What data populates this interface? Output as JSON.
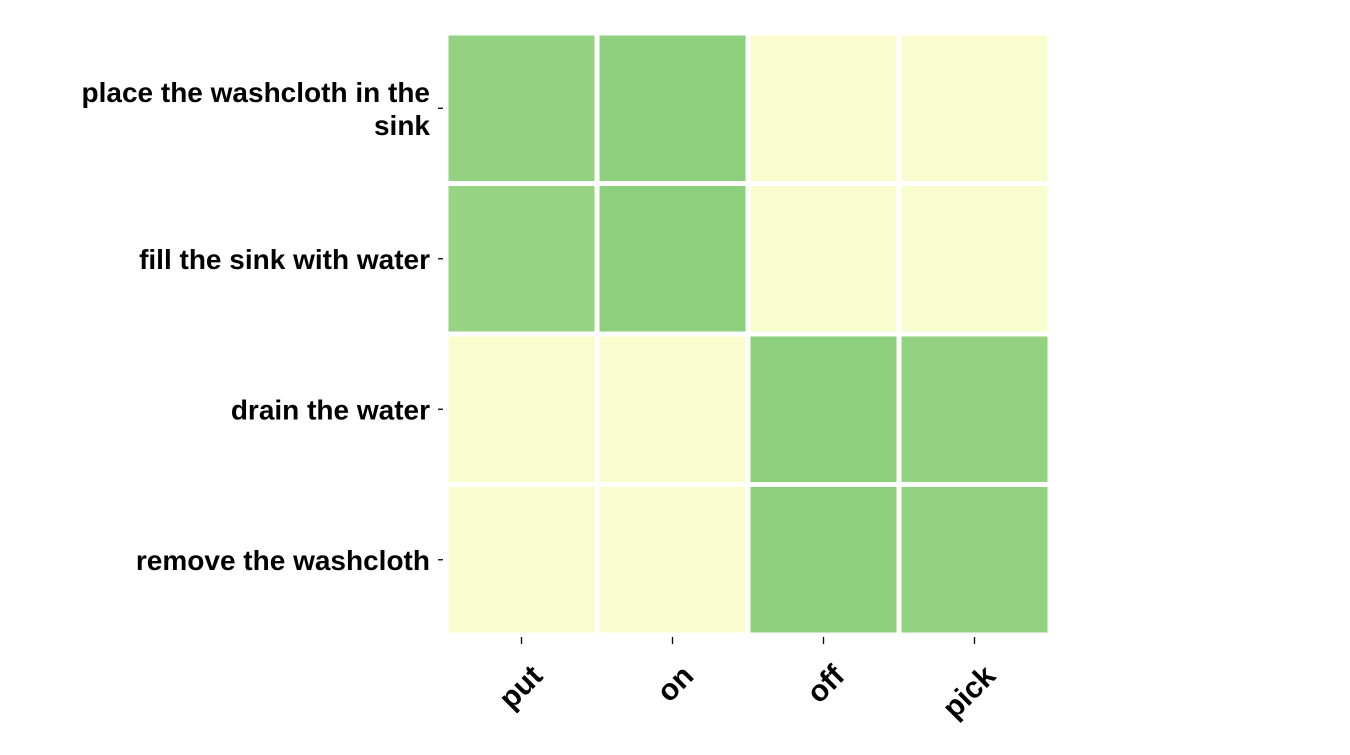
{
  "chart_data": {
    "type": "heatmap",
    "title": "",
    "xlabel": "",
    "ylabel": "",
    "x_categories": [
      "put",
      "on",
      "off",
      "pick"
    ],
    "y_categories": [
      [
        "place the washcloth in the",
        "sink"
      ],
      [
        "fill the sink with water"
      ],
      [
        "drain the water"
      ],
      [
        "remove the washcloth"
      ]
    ],
    "values": [
      [
        0.62,
        0.66,
        0.0,
        0.0
      ],
      [
        0.6,
        0.66,
        0.0,
        0.0
      ],
      [
        0.0,
        0.0,
        0.66,
        0.62
      ],
      [
        0.0,
        0.0,
        0.66,
        0.62
      ]
    ],
    "colormap": {
      "low": "#f9fccd",
      "high": "#8ccf7c"
    },
    "grid": false,
    "legend": "none"
  }
}
